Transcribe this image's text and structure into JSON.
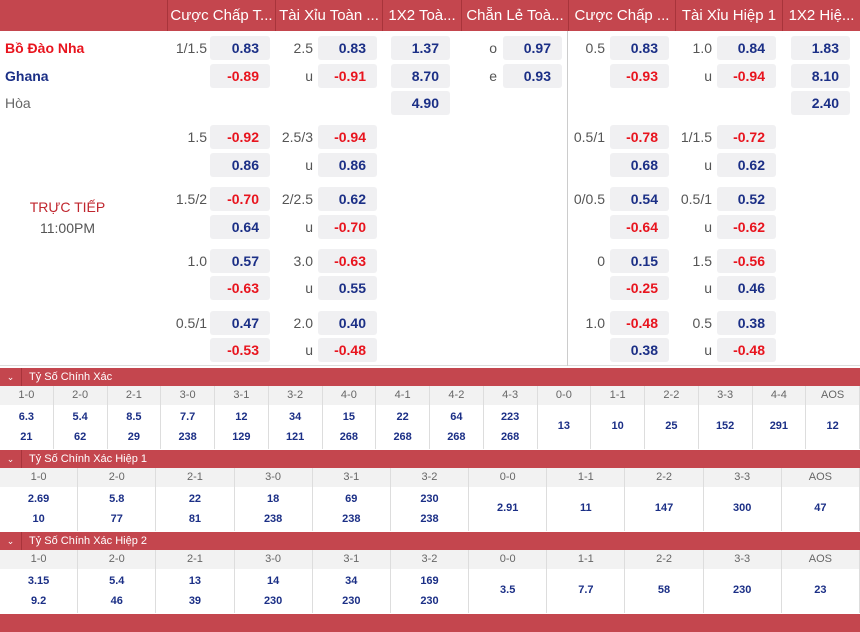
{
  "headers": [
    "Cược Chấp T...",
    "Tài Xỉu Toàn ...",
    "1X2 Toà...",
    "Chẵn Lẻ Toà...",
    "Cược Chấp ...",
    "Tài Xỉu Hiệp 1",
    "1X2 Hiệ..."
  ],
  "teams": {
    "home": "Bồ Đào Nha",
    "away": "Ghana",
    "draw": "Hòa"
  },
  "status": {
    "live": "TRỰC TIẾP",
    "time": "11:00PM"
  },
  "colors": {
    "header": "#c4464e",
    "positive": "#1b2f86",
    "negative": "#e8141e"
  },
  "main": {
    "hdp": {
      "line": "1/1.5",
      "home": "0.83",
      "away": "-0.89"
    },
    "ou": {
      "line": "2.5",
      "over": "0.83",
      "under_label": "u",
      "under": "-0.91"
    },
    "x12": {
      "home": "1.37",
      "away": "8.70",
      "draw": "4.90"
    },
    "oe": {
      "odd_label": "o",
      "odd": "0.97",
      "even_label": "e",
      "even": "0.93"
    },
    "h1_hdp": {
      "line": "0.5",
      "home": "0.83",
      "away": "-0.93"
    },
    "h1_ou": {
      "line": "1.0",
      "over": "0.84",
      "under_label": "u",
      "under": "-0.94"
    },
    "h1_x12": {
      "home": "1.83",
      "away": "8.10",
      "draw": "2.40"
    }
  },
  "alt_lines": [
    {
      "hdp": [
        "1.5",
        "-0.92",
        "0.86"
      ],
      "ou": [
        "2.5/3",
        "-0.94",
        "u",
        "0.86"
      ],
      "h1_hdp": [
        "0.5/1",
        "-0.78",
        "0.68"
      ],
      "h1_ou": [
        "1/1.5",
        "-0.72",
        "u",
        "0.62"
      ]
    },
    {
      "hdp": [
        "1.5/2",
        "-0.70",
        "0.64"
      ],
      "ou": [
        "2/2.5",
        "0.62",
        "u",
        "-0.70"
      ],
      "h1_hdp": [
        "0/0.5",
        "0.54",
        "-0.64"
      ],
      "h1_ou": [
        "0.5/1",
        "0.52",
        "u",
        "-0.62"
      ]
    },
    {
      "hdp": [
        "1.0",
        "0.57",
        "-0.63"
      ],
      "ou": [
        "3.0",
        "-0.63",
        "u",
        "0.55"
      ],
      "h1_hdp": [
        "0",
        "0.15",
        "-0.25"
      ],
      "h1_ou": [
        "1.5",
        "-0.56",
        "u",
        "0.46"
      ]
    },
    {
      "hdp": [
        "0.5/1",
        "0.47",
        "-0.53"
      ],
      "ou": [
        "2.0",
        "0.40",
        "u",
        "-0.48"
      ],
      "h1_hdp": [
        "1.0",
        "-0.48",
        "0.38"
      ],
      "h1_ou": [
        "0.5",
        "0.38",
        "u",
        "-0.48"
      ]
    }
  ],
  "correct_score": [
    {
      "title": "Tỷ Số Chính Xác",
      "cols": [
        {
          "s": "1-0",
          "v": [
            "6.3",
            "21"
          ]
        },
        {
          "s": "2-0",
          "v": [
            "5.4",
            "62"
          ]
        },
        {
          "s": "2-1",
          "v": [
            "8.5",
            "29"
          ]
        },
        {
          "s": "3-0",
          "v": [
            "7.7",
            "238"
          ]
        },
        {
          "s": "3-1",
          "v": [
            "12",
            "129"
          ]
        },
        {
          "s": "3-2",
          "v": [
            "34",
            "121"
          ]
        },
        {
          "s": "4-0",
          "v": [
            "15",
            "268"
          ]
        },
        {
          "s": "4-1",
          "v": [
            "22",
            "268"
          ]
        },
        {
          "s": "4-2",
          "v": [
            "64",
            "268"
          ]
        },
        {
          "s": "4-3",
          "v": [
            "223",
            "268"
          ]
        },
        {
          "s": "0-0",
          "v": [
            "13"
          ]
        },
        {
          "s": "1-1",
          "v": [
            "10"
          ]
        },
        {
          "s": "2-2",
          "v": [
            "25"
          ]
        },
        {
          "s": "3-3",
          "v": [
            "152"
          ]
        },
        {
          "s": "4-4",
          "v": [
            "291"
          ]
        },
        {
          "s": "AOS",
          "v": [
            "12"
          ]
        }
      ]
    },
    {
      "title": "Tỷ Số Chính Xác Hiệp 1",
      "cols": [
        {
          "s": "1-0",
          "v": [
            "2.69",
            "10"
          ]
        },
        {
          "s": "2-0",
          "v": [
            "5.8",
            "77"
          ]
        },
        {
          "s": "2-1",
          "v": [
            "22",
            "81"
          ]
        },
        {
          "s": "3-0",
          "v": [
            "18",
            "238"
          ]
        },
        {
          "s": "3-1",
          "v": [
            "69",
            "238"
          ]
        },
        {
          "s": "3-2",
          "v": [
            "230",
            "238"
          ]
        },
        {
          "s": "0-0",
          "v": [
            "2.91"
          ]
        },
        {
          "s": "1-1",
          "v": [
            "11"
          ]
        },
        {
          "s": "2-2",
          "v": [
            "147"
          ]
        },
        {
          "s": "3-3",
          "v": [
            "300"
          ]
        },
        {
          "s": "AOS",
          "v": [
            "47"
          ]
        }
      ]
    },
    {
      "title": "Tỷ Số Chính Xác Hiệp 2",
      "cols": [
        {
          "s": "1-0",
          "v": [
            "3.15",
            "9.2"
          ]
        },
        {
          "s": "2-0",
          "v": [
            "5.4",
            "46"
          ]
        },
        {
          "s": "2-1",
          "v": [
            "13",
            "39"
          ]
        },
        {
          "s": "3-0",
          "v": [
            "14",
            "230"
          ]
        },
        {
          "s": "3-1",
          "v": [
            "34",
            "230"
          ]
        },
        {
          "s": "3-2",
          "v": [
            "169",
            "230"
          ]
        },
        {
          "s": "0-0",
          "v": [
            "3.5"
          ]
        },
        {
          "s": "1-1",
          "v": [
            "7.7"
          ]
        },
        {
          "s": "2-2",
          "v": [
            "58"
          ]
        },
        {
          "s": "3-3",
          "v": [
            "230"
          ]
        },
        {
          "s": "AOS",
          "v": [
            "23"
          ]
        }
      ]
    }
  ]
}
